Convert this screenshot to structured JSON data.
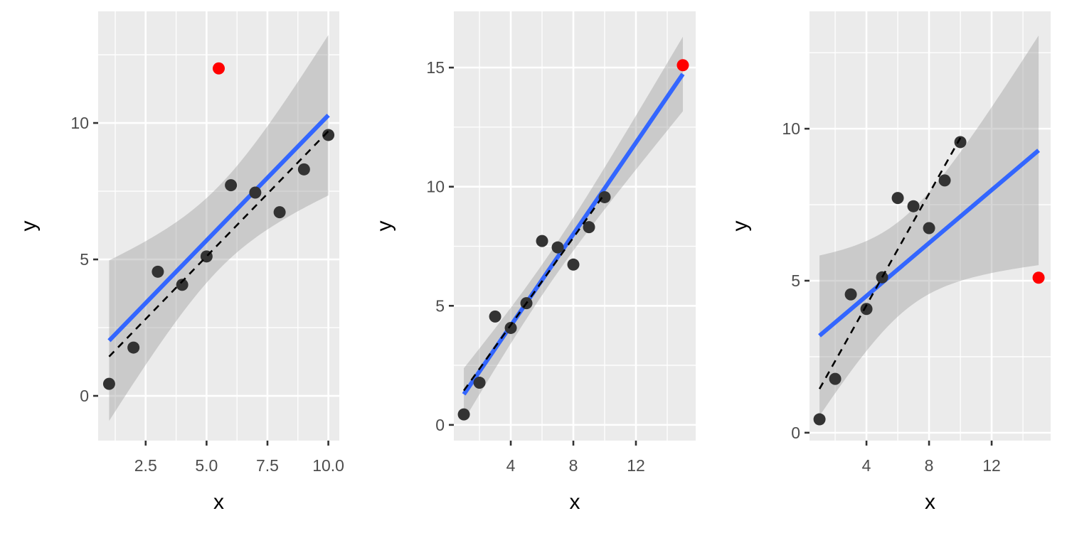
{
  "chart_data": [
    {
      "type": "scatter",
      "xlabel": "x",
      "ylabel": "y",
      "xlim": [
        0.55,
        10.45
      ],
      "ylim": [
        -1.64,
        14.09
      ],
      "xticks": [
        2.5,
        5,
        7.5,
        10
      ],
      "xtick_labels": [
        "2.5",
        "5.0",
        "7.5",
        "10.0"
      ],
      "xminor": [
        1.25,
        3.75,
        6.25,
        8.75
      ],
      "yticks": [
        0,
        5,
        10
      ],
      "ytick_labels": [
        "0",
        "5",
        "10"
      ],
      "yminor": [
        2.5,
        7.5,
        12.5
      ],
      "points": {
        "x": [
          1,
          2,
          3,
          4,
          5,
          6,
          7,
          8,
          9,
          10
        ],
        "y": [
          0.44,
          1.77,
          4.55,
          4.07,
          5.11,
          7.72,
          7.45,
          6.73,
          8.3,
          9.56
        ]
      },
      "highlight": {
        "x": 5.5,
        "y": 12.0
      },
      "grid": true
    },
    {
      "type": "scatter",
      "xlabel": "x",
      "ylabel": "y",
      "xlim": [
        0.36,
        15.82
      ],
      "ylim": [
        -0.66,
        17.36
      ],
      "xticks": [
        4,
        8,
        12
      ],
      "xtick_labels": [
        "4",
        "8",
        "12"
      ],
      "xminor": [
        2,
        6,
        10,
        14
      ],
      "yticks": [
        0,
        5,
        10,
        15
      ],
      "ytick_labels": [
        "0",
        "5",
        "10",
        "15"
      ],
      "yminor": [
        2.5,
        7.5,
        12.5
      ],
      "points": {
        "x": [
          1,
          2,
          3,
          4,
          5,
          6,
          7,
          8,
          9,
          10
        ],
        "y": [
          0.44,
          1.77,
          4.55,
          4.07,
          5.11,
          7.72,
          7.45,
          6.73,
          8.3,
          9.56
        ]
      },
      "highlight": {
        "x": 15.0,
        "y": 15.1
      },
      "grid": true
    },
    {
      "type": "scatter",
      "xlabel": "x",
      "ylabel": "y",
      "xlim": [
        0.36,
        15.77
      ],
      "ylim": [
        -0.26,
        13.86
      ],
      "xticks": [
        4,
        8,
        12
      ],
      "xtick_labels": [
        "4",
        "8",
        "12"
      ],
      "xminor": [
        2,
        6,
        10,
        14
      ],
      "yticks": [
        0,
        5,
        10
      ],
      "ytick_labels": [
        "0",
        "5",
        "10"
      ],
      "yminor": [
        2.5,
        7.5,
        12.5
      ],
      "points": {
        "x": [
          1,
          2,
          3,
          4,
          5,
          6,
          7,
          8,
          9,
          10
        ],
        "y": [
          0.44,
          1.77,
          4.55,
          4.07,
          5.11,
          7.72,
          7.45,
          6.73,
          8.3,
          9.56
        ]
      },
      "highlight": {
        "x": 15.0,
        "y": 5.1
      },
      "grid": true
    }
  ],
  "colors": {
    "panel_bg": "#EBEBEB",
    "grid": "#FFFFFF",
    "points": "#333333",
    "highlight": "#FF0000",
    "fit_all": "#3366FF",
    "fit_without_highlight": "#000000",
    "confidence_band": "#999999"
  }
}
